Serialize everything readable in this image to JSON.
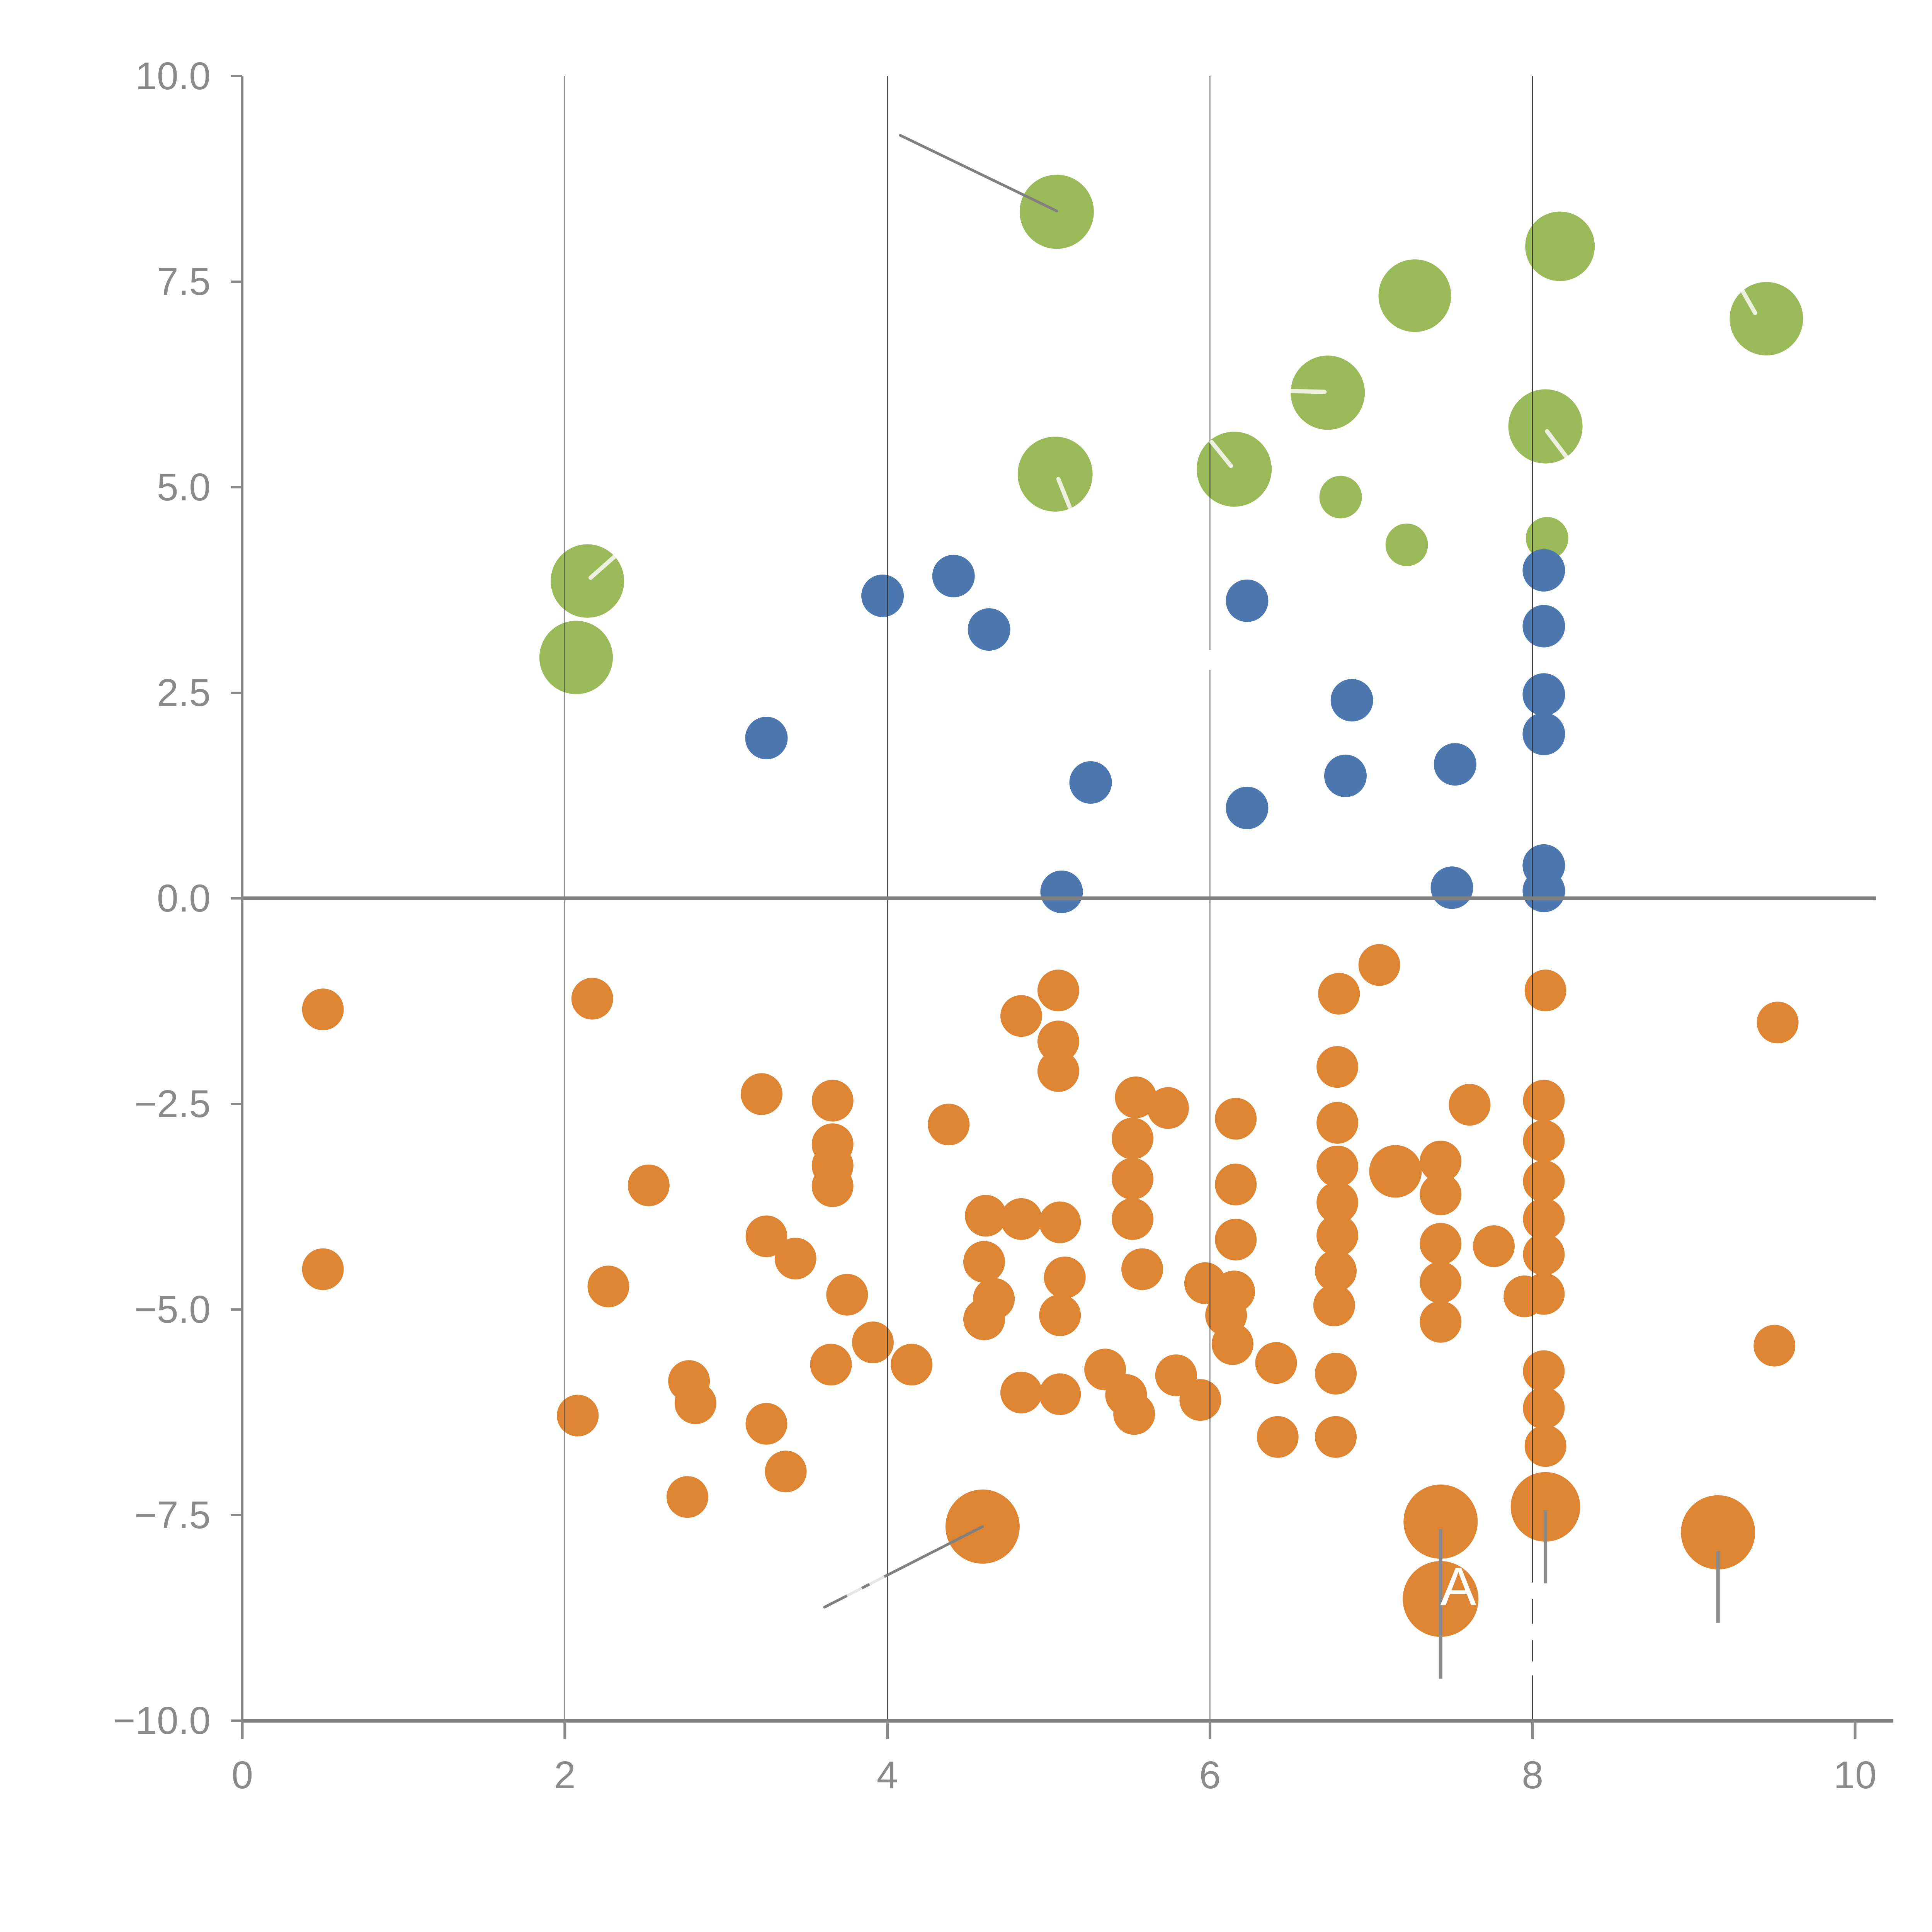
{
  "chart_data": {
    "type": "scatter",
    "title": "",
    "xlabel": "",
    "ylabel": "",
    "x_axis": {
      "range": [
        0,
        10
      ],
      "tick_values": [
        0,
        2,
        4,
        6,
        8,
        10
      ],
      "tick_labels": [
        "0",
        "2",
        "4",
        "6",
        "8",
        "10"
      ],
      "gridline_values": [
        2,
        4,
        6,
        8
      ]
    },
    "y_axis": {
      "range": [
        -10,
        10
      ],
      "tick_values": [
        10,
        7.5,
        5,
        2.5,
        0,
        -2.5,
        -5,
        -7.5,
        -10
      ],
      "tick_labels": [
        "10.0",
        "7.5",
        "5.0",
        "2.5",
        "0.0",
        "−2.5",
        "−5.0",
        "−7.5",
        "−10.0"
      ]
    },
    "zero_line_y": 0,
    "grid": "vertical-only",
    "legend": "none",
    "series": [
      {
        "name": "green",
        "color": "#9ABA5A",
        "default_r": 55,
        "points": [
          [
            5.05,
            8.35,
            96
          ],
          [
            8.17,
            7.93,
            90
          ],
          [
            7.27,
            7.33,
            94
          ],
          [
            9.45,
            7.05,
            95
          ],
          [
            6.73,
            6.15,
            96
          ],
          [
            8.08,
            5.74,
            96
          ],
          [
            5.04,
            5.16,
            97
          ],
          [
            6.15,
            5.22,
            97
          ],
          [
            6.81,
            4.88,
            55
          ],
          [
            7.22,
            4.3,
            55
          ],
          [
            8.09,
            4.38,
            55
          ],
          [
            2.14,
            3.86,
            95
          ],
          [
            2.07,
            2.93,
            95
          ]
        ]
      },
      {
        "name": "blue",
        "color": "#4C78AF",
        "default_r": 55,
        "points": [
          [
            3.97,
            3.68
          ],
          [
            4.41,
            3.92
          ],
          [
            4.63,
            3.27
          ],
          [
            3.25,
            1.95
          ],
          [
            5.26,
            1.41
          ],
          [
            5.08,
            0.08
          ],
          [
            6.23,
            3.62
          ],
          [
            6.23,
            1.1
          ],
          [
            6.88,
            2.41
          ],
          [
            6.84,
            1.49
          ],
          [
            7.52,
            1.63
          ],
          [
            7.5,
            0.13
          ],
          [
            8.07,
            3.99
          ],
          [
            8.07,
            3.31
          ],
          [
            8.07,
            2.48
          ],
          [
            8.07,
            2.0
          ],
          [
            8.07,
            0.4
          ],
          [
            8.07,
            0.09
          ]
        ]
      },
      {
        "name": "orange",
        "color": "#DD8532",
        "default_r": 54,
        "points": [
          [
            0.5,
            -1.35
          ],
          [
            2.17,
            -1.22
          ],
          [
            3.22,
            -2.38
          ],
          [
            2.52,
            -3.49
          ],
          [
            0.5,
            -4.51
          ],
          [
            2.27,
            -4.72
          ],
          [
            3.25,
            -4.11
          ],
          [
            3.43,
            -4.38
          ],
          [
            3.66,
            -2.46
          ],
          [
            3.66,
            -2.99
          ],
          [
            3.66,
            -3.25
          ],
          [
            3.66,
            -3.5
          ],
          [
            3.75,
            -4.82
          ],
          [
            3.91,
            -5.4
          ],
          [
            5.06,
            -1.12
          ],
          [
            4.83,
            -1.43
          ],
          [
            5.06,
            -1.74
          ],
          [
            5.06,
            -2.1
          ],
          [
            4.38,
            -2.75
          ],
          [
            5.54,
            -2.42
          ],
          [
            5.74,
            -2.55
          ],
          [
            5.52,
            -2.92
          ],
          [
            5.52,
            -3.41
          ],
          [
            5.52,
            -3.9
          ],
          [
            4.61,
            -3.86
          ],
          [
            4.83,
            -3.9
          ],
          [
            5.07,
            -3.94
          ],
          [
            4.6,
            -4.42
          ],
          [
            4.66,
            -4.87
          ],
          [
            5.1,
            -4.61
          ],
          [
            5.07,
            -5.07
          ],
          [
            5.58,
            -4.51
          ],
          [
            4.6,
            -5.12
          ],
          [
            5.35,
            -5.73
          ],
          [
            5.48,
            -6.04
          ],
          [
            5.53,
            -6.27
          ],
          [
            5.79,
            -5.8
          ],
          [
            5.94,
            -6.1
          ],
          [
            4.83,
            -6.01
          ],
          [
            5.07,
            -6.03
          ],
          [
            3.65,
            -5.67
          ],
          [
            4.15,
            -5.67
          ],
          [
            2.08,
            -6.29
          ],
          [
            2.77,
            -5.87
          ],
          [
            2.81,
            -6.14
          ],
          [
            3.25,
            -6.39
          ],
          [
            3.37,
            -6.97
          ],
          [
            2.76,
            -7.28
          ],
          [
            6.16,
            -2.68
          ],
          [
            6.16,
            -3.48
          ],
          [
            6.16,
            -4.15
          ],
          [
            6.15,
            -4.78
          ],
          [
            6.1,
            -5.07
          ],
          [
            6.14,
            -5.42
          ],
          [
            5.97,
            -4.68
          ],
          [
            6.41,
            -5.65
          ],
          [
            6.42,
            -6.55
          ],
          [
            6.79,
            -2.05
          ],
          [
            6.79,
            -2.73
          ],
          [
            6.79,
            -3.26
          ],
          [
            6.79,
            -3.7
          ],
          [
            6.79,
            -4.1
          ],
          [
            6.78,
            -4.53
          ],
          [
            6.77,
            -4.95
          ],
          [
            6.78,
            -5.78
          ],
          [
            6.78,
            -6.55
          ],
          [
            6.8,
            -1.16
          ],
          [
            7.05,
            -0.81
          ],
          [
            7.15,
            -3.32,
            68
          ],
          [
            7.43,
            -3.2
          ],
          [
            7.43,
            -3.6
          ],
          [
            7.43,
            -4.2
          ],
          [
            7.43,
            -4.67
          ],
          [
            7.43,
            -5.15
          ],
          [
            7.61,
            -2.51
          ],
          [
            7.76,
            -4.23
          ],
          [
            8.08,
            -1.12
          ],
          [
            8.07,
            -2.46
          ],
          [
            8.07,
            -2.95
          ],
          [
            8.07,
            -3.44
          ],
          [
            8.07,
            -3.9
          ],
          [
            8.07,
            -4.33
          ],
          [
            8.07,
            -4.81
          ],
          [
            7.95,
            -4.84
          ],
          [
            8.07,
            -5.75
          ],
          [
            8.07,
            -6.2
          ],
          [
            8.08,
            -6.66
          ],
          [
            8.08,
            -7.4,
            90
          ],
          [
            7.43,
            -7.58,
            96
          ],
          [
            7.43,
            -8.52,
            98
          ],
          [
            4.59,
            -7.64,
            96
          ],
          [
            9.15,
            -7.71,
            96
          ],
          [
            9.52,
            -1.51
          ],
          [
            9.5,
            -5.44
          ]
        ]
      }
    ],
    "annotations": {
      "leader_lines": [
        [
          4.08,
          9.28,
          5.05,
          8.36
        ],
        [
          3.61,
          -8.62,
          4.59,
          -7.64
        ]
      ],
      "error_bars": [
        [
          7.43,
          -7.67,
          -9.49
        ],
        [
          8.08,
          -7.44,
          -8.33
        ],
        [
          9.15,
          -7.94,
          -8.81
        ]
      ],
      "highlight_slashes": [
        [
          2.16,
          3.9,
          2.31,
          4.16
        ],
        [
          5.06,
          5.1,
          5.13,
          4.76
        ],
        [
          6.01,
          5.55,
          6.13,
          5.26
        ],
        [
          6.5,
          6.17,
          6.71,
          6.16
        ],
        [
          8.09,
          5.68,
          8.21,
          5.37
        ],
        [
          9.29,
          7.43,
          9.38,
          7.12
        ],
        [
          3.76,
          -8.47,
          3.83,
          -8.4
        ],
        [
          3.9,
          -8.33,
          3.97,
          -8.26
        ]
      ],
      "white_gridline_dashes": [
        [
          6.0,
          2.78,
          3.02
        ],
        [
          8.0,
          -8.32,
          -8.52
        ],
        [
          8.0,
          -8.82,
          -9.02
        ],
        [
          8.0,
          -9.28,
          -9.45
        ]
      ],
      "point_label": {
        "text": "A",
        "x": 7.54,
        "y": -8.37
      }
    },
    "colors": {
      "background": "#ffffff",
      "gridline": "#2f2f2f",
      "zero_line": "#808080",
      "axis_line": "#8a8a8a",
      "x_axis_line": "#808080",
      "tick_label": "#8a8a8a",
      "leader_line": "#808080",
      "error_bar": "#8a8a8a",
      "slash": "#ffffff",
      "label_text": "#ffffff"
    }
  }
}
